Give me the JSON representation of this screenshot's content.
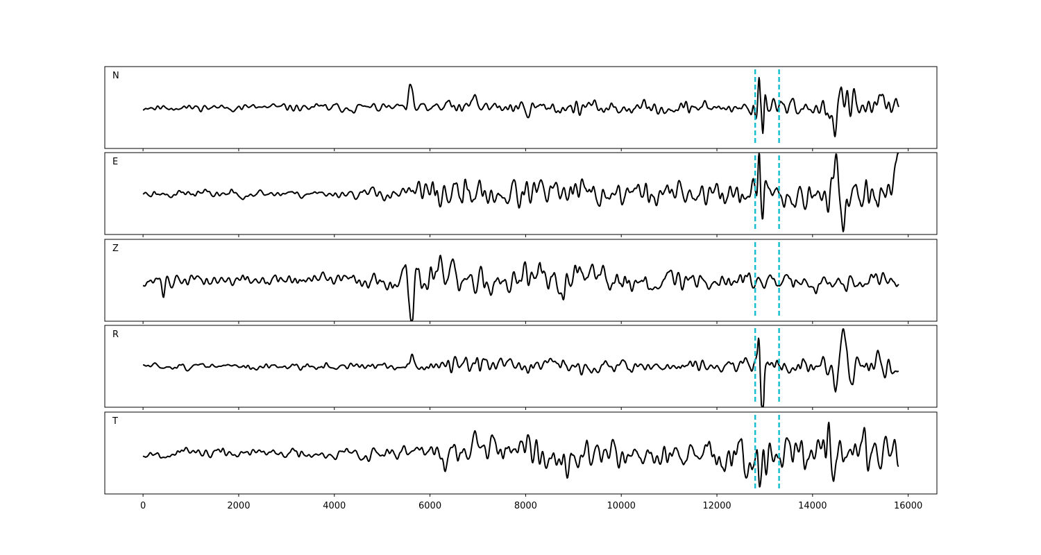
{
  "chart_data": {
    "type": "line",
    "title": "",
    "xlabel": "",
    "ylabel": "",
    "xlim": [
      -800,
      16600
    ],
    "x_ticks": [
      0,
      2000,
      4000,
      6000,
      8000,
      10000,
      12000,
      14000,
      16000
    ],
    "x_tick_labels": [
      "0",
      "2000",
      "4000",
      "6000",
      "8000",
      "10000",
      "12000",
      "14000",
      "16000"
    ],
    "x_range": [
      0,
      15800
    ],
    "markers": [
      12800,
      13300
    ],
    "marker_color": "#17becf",
    "trace_color": "#000000",
    "grid": false,
    "panels": [
      {
        "label": "N",
        "ylim": [
          -1.25,
          1.25
        ],
        "seed": 11,
        "envelope": [
          [
            0,
            0.08
          ],
          [
            5400,
            0.12
          ],
          [
            5600,
            0.42
          ],
          [
            5800,
            0.18
          ],
          [
            6900,
            0.2
          ],
          [
            10000,
            0.18
          ],
          [
            12700,
            0.17
          ],
          [
            12900,
            1.1
          ],
          [
            13100,
            0.3
          ],
          [
            14000,
            0.2
          ],
          [
            14500,
            0.65
          ],
          [
            15000,
            0.35
          ],
          [
            15800,
            0.35
          ]
        ],
        "bursts": [
          [
            5620,
            0.45,
            50
          ],
          [
            5720,
            -0.42,
            40
          ],
          [
            6950,
            0.3,
            60
          ],
          [
            12880,
            1.05,
            30
          ],
          [
            12960,
            -0.95,
            30
          ],
          [
            14480,
            -0.8,
            50
          ],
          [
            14620,
            0.65,
            60
          ]
        ]
      },
      {
        "label": "E",
        "ylim": [
          -1.25,
          1.25
        ],
        "seed": 23,
        "envelope": [
          [
            0,
            0.12
          ],
          [
            4000,
            0.12
          ],
          [
            5400,
            0.2
          ],
          [
            5800,
            0.45
          ],
          [
            7500,
            0.45
          ],
          [
            10000,
            0.38
          ],
          [
            12000,
            0.35
          ],
          [
            12800,
            0.45
          ],
          [
            12900,
            1.05
          ],
          [
            13100,
            0.4
          ],
          [
            14000,
            0.45
          ],
          [
            14500,
            0.7
          ],
          [
            15800,
            0.55
          ]
        ],
        "bursts": [
          [
            12880,
            1.1,
            30
          ],
          [
            12960,
            -0.9,
            30
          ],
          [
            14500,
            0.75,
            50
          ],
          [
            14620,
            -0.8,
            50
          ],
          [
            15800,
            0.5,
            60
          ]
        ]
      },
      {
        "label": "Z",
        "ylim": [
          -1.25,
          1.25
        ],
        "seed": 37,
        "envelope": [
          [
            0,
            0.12
          ],
          [
            300,
            0.2
          ],
          [
            500,
            0.3
          ],
          [
            700,
            0.14
          ],
          [
            5400,
            0.22
          ],
          [
            5600,
            0.9
          ],
          [
            5800,
            0.55
          ],
          [
            7500,
            0.38
          ],
          [
            8400,
            0.55
          ],
          [
            10000,
            0.3
          ],
          [
            12800,
            0.28
          ],
          [
            15800,
            0.22
          ]
        ],
        "bursts": [
          [
            430,
            -0.35,
            40
          ],
          [
            5620,
            -1.05,
            40
          ],
          [
            5700,
            0.95,
            40
          ],
          [
            6950,
            -0.75,
            60
          ],
          [
            8400,
            0.55,
            50
          ],
          [
            8600,
            -0.4,
            50
          ]
        ]
      },
      {
        "label": "R",
        "ylim": [
          -1.25,
          1.25
        ],
        "seed": 51,
        "envelope": [
          [
            0,
            0.08
          ],
          [
            5400,
            0.12
          ],
          [
            5600,
            0.38
          ],
          [
            5800,
            0.18
          ],
          [
            7000,
            0.22
          ],
          [
            10000,
            0.18
          ],
          [
            12700,
            0.2
          ],
          [
            12900,
            1.05
          ],
          [
            13100,
            0.35
          ],
          [
            14000,
            0.25
          ],
          [
            14500,
            0.7
          ],
          [
            15000,
            0.35
          ],
          [
            15800,
            0.3
          ]
        ],
        "bursts": [
          [
            5620,
            0.4,
            50
          ],
          [
            12880,
            1.0,
            30
          ],
          [
            12960,
            -0.95,
            30
          ],
          [
            14500,
            -0.85,
            50
          ],
          [
            14640,
            0.75,
            60
          ]
        ]
      },
      {
        "label": "T",
        "ylim": [
          -1.25,
          1.25
        ],
        "seed": 67,
        "envelope": [
          [
            0,
            0.16
          ],
          [
            4000,
            0.16
          ],
          [
            5800,
            0.28
          ],
          [
            6100,
            0.5
          ],
          [
            8000,
            0.5
          ],
          [
            10000,
            0.45
          ],
          [
            12000,
            0.4
          ],
          [
            12900,
            0.9
          ],
          [
            13100,
            0.5
          ],
          [
            13600,
            0.6
          ],
          [
            14400,
            0.8
          ],
          [
            15800,
            0.55
          ]
        ],
        "bursts": [
          [
            12880,
            -1.05,
            30
          ],
          [
            13100,
            0.45,
            50
          ],
          [
            14350,
            0.9,
            40
          ],
          [
            14450,
            -0.7,
            40
          ],
          [
            15780,
            -0.5,
            50
          ]
        ]
      }
    ]
  }
}
